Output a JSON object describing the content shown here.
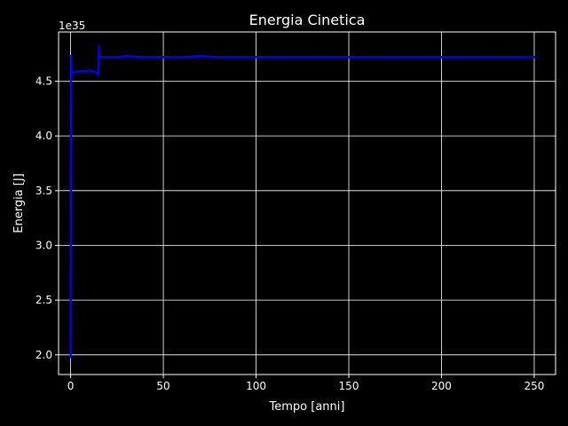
{
  "chart_data": {
    "type": "line",
    "title": "Energia Cinetica",
    "xlabel": "Tempo [anni]",
    "ylabel": "Energia [J]",
    "y_offset_label": "1e35",
    "xlim": [
      -6.5,
      261.5
    ],
    "ylim": [
      1.82,
      4.95
    ],
    "xticks": [
      0,
      50,
      100,
      150,
      200,
      250
    ],
    "yticks": [
      2.0,
      2.5,
      3.0,
      3.5,
      4.0,
      4.5
    ],
    "ytick_labels": [
      "2.0",
      "2.5",
      "3.0",
      "3.5",
      "4.0",
      "4.5"
    ],
    "grid": true,
    "series": [
      {
        "color": "#0000ff",
        "x": [
          0,
          0.3,
          0.6,
          1,
          2,
          4,
          6,
          8,
          10,
          12,
          14,
          15,
          15.2,
          15.5,
          16,
          18,
          20,
          25,
          30,
          40,
          50,
          60,
          70,
          80,
          90,
          100,
          110,
          120,
          130,
          140,
          150,
          160,
          170,
          180,
          190,
          200,
          210,
          220,
          230,
          240,
          250
        ],
        "y": [
          1.98,
          4.73,
          4.56,
          4.58,
          4.58,
          4.59,
          4.59,
          4.59,
          4.6,
          4.59,
          4.58,
          4.56,
          4.82,
          4.72,
          4.72,
          4.72,
          4.72,
          4.72,
          4.73,
          4.72,
          4.72,
          4.72,
          4.73,
          4.72,
          4.72,
          4.72,
          4.72,
          4.72,
          4.72,
          4.72,
          4.72,
          4.72,
          4.72,
          4.72,
          4.72,
          4.72,
          4.72,
          4.72,
          4.72,
          4.72,
          4.72
        ]
      }
    ]
  },
  "colors": {
    "background": "#000000",
    "axes": "#ffffff",
    "grid": "#ffffff",
    "line": "#0000ff"
  }
}
